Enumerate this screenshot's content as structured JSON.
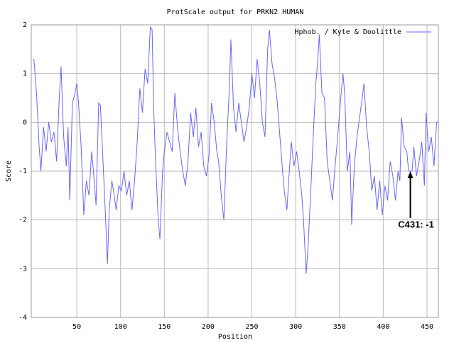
{
  "chart_data": {
    "type": "line",
    "title": "ProtScale output for PRKN2 HUMAN",
    "xlabel": "Position",
    "ylabel": "Score",
    "xlim": [
      -2,
      463
    ],
    "ylim": [
      -4,
      2
    ],
    "xticks": [
      50,
      100,
      150,
      200,
      250,
      300,
      350,
      400,
      450
    ],
    "yticks": [
      -4,
      -3,
      -2,
      -1,
      0,
      1,
      2
    ],
    "grid": true,
    "legend": "upper right",
    "series": [
      {
        "name": "Hphob. / Kyte & Doolittle",
        "color": "#6666ff",
        "x": [
          1,
          4,
          7,
          9,
          12,
          15,
          18,
          21,
          24,
          27,
          30,
          32,
          35,
          38,
          40,
          42,
          45,
          48,
          50,
          52,
          55,
          58,
          61,
          64,
          67,
          69,
          72,
          75,
          77,
          80,
          83,
          85,
          87,
          90,
          92,
          95,
          98,
          101,
          104,
          107,
          110,
          113,
          116,
          119,
          122,
          125,
          128,
          131,
          134,
          136,
          138,
          140,
          143,
          145,
          148,
          150,
          153,
          156,
          159,
          162,
          165,
          168,
          171,
          174,
          177,
          180,
          183,
          186,
          189,
          192,
          195,
          198,
          201,
          204,
          207,
          210,
          212,
          215,
          218,
          221,
          224,
          226,
          229,
          232,
          235,
          238,
          241,
          244,
          247,
          250,
          253,
          256,
          259,
          262,
          265,
          268,
          270,
          273,
          276,
          279,
          282,
          285,
          287,
          290,
          292,
          295,
          298,
          301,
          304,
          307,
          309,
          312,
          314,
          317,
          320,
          323,
          325,
          327,
          330,
          333,
          336,
          339,
          342,
          345,
          348,
          351,
          354,
          356,
          359,
          362,
          364,
          367,
          370,
          373,
          376,
          378,
          381,
          384,
          387,
          390,
          393,
          396,
          399,
          402,
          405,
          408,
          411,
          414,
          417,
          419,
          421,
          424,
          427,
          429,
          431,
          433,
          435,
          438,
          441,
          444,
          447,
          449,
          452,
          455,
          458,
          461,
          463
        ],
        "values": [
          1.3,
          0.6,
          -0.5,
          -1.0,
          -0.1,
          -0.6,
          0.0,
          -0.4,
          -0.2,
          -0.8,
          0.5,
          1.15,
          -0.3,
          -0.9,
          -0.1,
          -1.6,
          0.4,
          0.6,
          0.8,
          0.4,
          -0.5,
          -1.9,
          -1.2,
          -1.5,
          -0.6,
          -1.0,
          -1.7,
          0.4,
          0.35,
          -0.8,
          -2.0,
          -2.9,
          -1.8,
          -1.2,
          -1.4,
          -1.8,
          -1.3,
          -1.4,
          -1.0,
          -1.5,
          -1.2,
          -1.8,
          -1.2,
          -0.4,
          0.7,
          0.2,
          1.1,
          0.8,
          1.95,
          1.9,
          0.2,
          -0.8,
          -2.0,
          -2.4,
          -1.0,
          -0.6,
          -0.2,
          -0.4,
          -0.6,
          0.6,
          -0.1,
          -0.6,
          -1.0,
          -1.3,
          -0.8,
          0.2,
          -0.3,
          0.3,
          -0.5,
          -0.2,
          -0.9,
          -1.1,
          -0.7,
          0.4,
          0.0,
          -0.6,
          -0.8,
          -1.5,
          -2.0,
          -0.5,
          0.6,
          1.7,
          0.3,
          -0.2,
          0.4,
          0.0,
          -0.4,
          -0.1,
          0.3,
          1.0,
          0.5,
          1.3,
          0.8,
          0.0,
          -0.3,
          1.5,
          1.9,
          1.2,
          0.9,
          0.4,
          -0.3,
          -1.0,
          -1.4,
          -1.8,
          -1.2,
          -0.4,
          -0.9,
          -0.6,
          -1.0,
          -1.5,
          -2.0,
          -3.1,
          -2.6,
          -1.5,
          -0.3,
          0.8,
          1.2,
          1.8,
          0.6,
          0.5,
          -0.8,
          -1.2,
          -1.6,
          -0.9,
          -0.3,
          0.4,
          1.0,
          0.6,
          -1.0,
          -0.6,
          -2.1,
          -0.9,
          -0.3,
          0.1,
          0.5,
          0.8,
          -0.1,
          -0.6,
          -1.4,
          -1.1,
          -1.8,
          -1.2,
          -1.9,
          -1.3,
          -1.6,
          -0.8,
          -1.1,
          -1.6,
          -1.0,
          -1.2,
          0.1,
          -0.5,
          -0.6,
          -1.0,
          -1.0,
          -1.0,
          -0.5,
          -1.1,
          -0.8,
          -0.4,
          -1.3,
          0.2,
          -0.6,
          -0.3,
          -0.9,
          0.0,
          0.0
        ]
      }
    ],
    "annotations": [
      {
        "text": "C431: -1",
        "x": 431,
        "y": -1
      }
    ]
  }
}
